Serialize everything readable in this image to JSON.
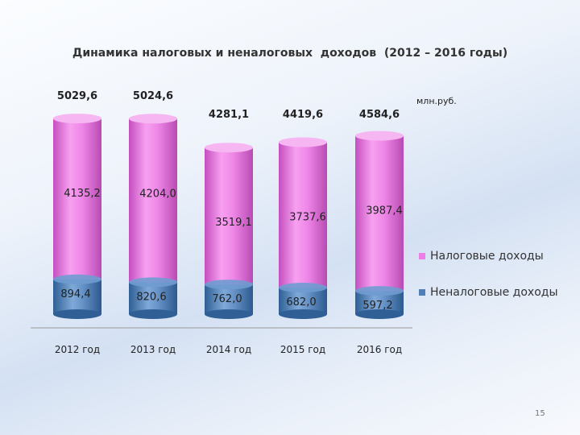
{
  "slide": {
    "title": "Динамика налоговых и неналоговых  доходов  (2012 – 2016 годы)",
    "unit": "млн.руб.",
    "page_number": "15"
  },
  "chart_data": {
    "type": "bar",
    "stacked": true,
    "title": "Динамика налоговых и неналоговых  доходов  (2012 – 2016 годы)",
    "ylabel": "",
    "unit": "млн.руб.",
    "legend_position": "right",
    "categories": [
      "2012 год",
      "2013 год",
      "2014 год",
      "2015 год",
      "2016 год"
    ],
    "totals": [
      5029.6,
      5024.6,
      4281.1,
      4419.6,
      4584.6
    ],
    "totals_labels": [
      "5029,6",
      "5024,6",
      "4281,1",
      "4419,6",
      "4584,6"
    ],
    "series": [
      {
        "name": "Неналоговые доходы",
        "color": "#4f7fb8",
        "values": [
          894.4,
          820.6,
          762.0,
          682.0,
          597.2
        ],
        "labels": [
          "894,4",
          "820,6",
          "762,0",
          "682,0",
          "597,2"
        ]
      },
      {
        "name": "Налоговые доходы",
        "color": "#ee7fe6",
        "values": [
          4135.2,
          4204.0,
          3519.1,
          3737.6,
          3987.4
        ],
        "labels": [
          "4135,2",
          "4204,0",
          "3519,1",
          "3737,6",
          "3987,4"
        ]
      }
    ]
  }
}
